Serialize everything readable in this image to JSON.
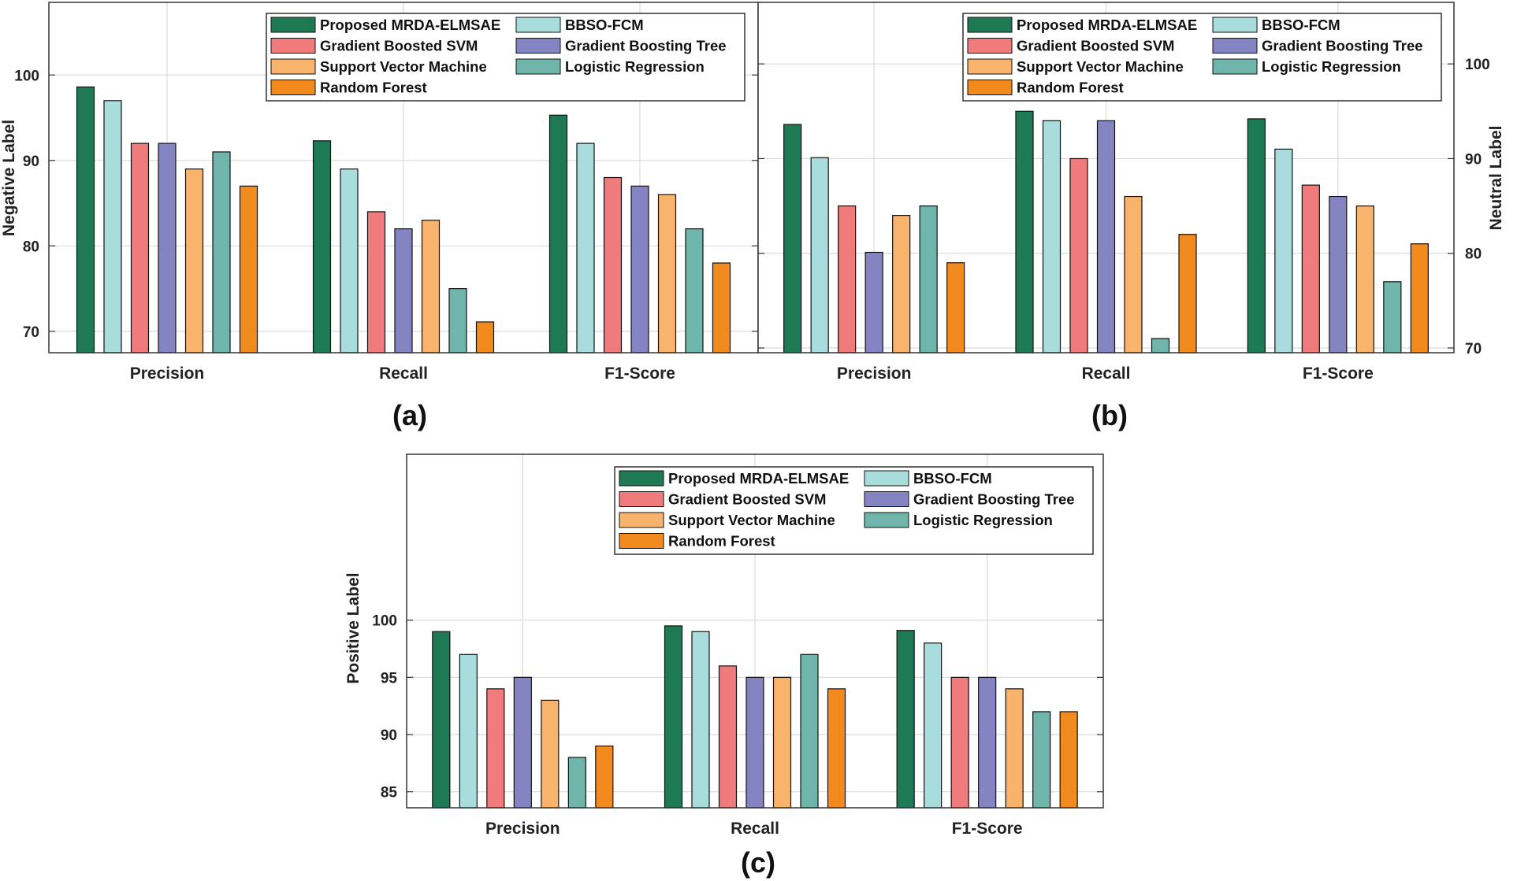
{
  "chart_data": [
    {
      "type": "bar",
      "panel": "(a)",
      "ylabel": "Negative Label",
      "categories": [
        "Precision",
        "Recall",
        "F1-Score"
      ],
      "ylim": [
        67.5,
        108.5
      ],
      "yticks": [
        70,
        80,
        90,
        100
      ],
      "ytick_labels": [
        "70",
        "80",
        "90",
        "100"
      ],
      "ylabel_side": "left",
      "grid": true,
      "series": [
        {
          "name": "Proposed MRDA-ELMSAE",
          "values": [
            98.6,
            92.3,
            95.3
          ]
        },
        {
          "name": "BBSO-FCM",
          "values": [
            97,
            89,
            92
          ]
        },
        {
          "name": "Gradient Boosted SVM",
          "values": [
            92,
            84,
            88
          ]
        },
        {
          "name": "Gradient Boosting Tree",
          "values": [
            92,
            82,
            87
          ]
        },
        {
          "name": "Support Vector Machine",
          "values": [
            89,
            83,
            86
          ]
        },
        {
          "name": "Logistic Regression",
          "values": [
            91,
            75,
            82
          ]
        },
        {
          "name": "Random Forest",
          "values": [
            87,
            71.1,
            78
          ]
        }
      ]
    },
    {
      "type": "bar",
      "panel": "(b)",
      "ylabel": "Neutral Label",
      "categories": [
        "Precision",
        "Recall",
        "F1-Score"
      ],
      "ylim": [
        69.5,
        106.5
      ],
      "yticks": [
        70,
        80,
        90,
        100
      ],
      "ytick_labels": [
        "70",
        "80",
        "90",
        "100"
      ],
      "ylabel_side": "right",
      "grid": true,
      "series": [
        {
          "name": "Proposed MRDA-ELMSAE",
          "values": [
            93.6,
            95,
            94.2
          ]
        },
        {
          "name": "BBSO-FCM",
          "values": [
            90.1,
            94,
            91
          ]
        },
        {
          "name": "Gradient Boosted SVM",
          "values": [
            85,
            90,
            87.2
          ]
        },
        {
          "name": "Gradient Boosting Tree",
          "values": [
            80.1,
            94,
            86
          ]
        },
        {
          "name": "Support Vector Machine",
          "values": [
            84,
            86,
            85
          ]
        },
        {
          "name": "Logistic Regression",
          "values": [
            85,
            71,
            77
          ]
        },
        {
          "name": "Random Forest",
          "values": [
            79,
            82,
            81
          ]
        }
      ]
    },
    {
      "type": "bar",
      "panel": "(c)",
      "ylabel": "Positive Label",
      "categories": [
        "Precision",
        "Recall",
        "F1-Score"
      ],
      "ylim": [
        83.6,
        114.5
      ],
      "yticks": [
        85,
        90,
        95,
        100
      ],
      "ytick_labels": [
        "85",
        "90",
        "95",
        "100"
      ],
      "ylabel_side": "left",
      "grid": true,
      "series": [
        {
          "name": "Proposed MRDA-ELMSAE",
          "values": [
            99,
            99.5,
            99.1
          ]
        },
        {
          "name": "BBSO-FCM",
          "values": [
            97,
            99,
            98
          ]
        },
        {
          "name": "Gradient Boosted SVM",
          "values": [
            94,
            96,
            95
          ]
        },
        {
          "name": "Gradient Boosting Tree",
          "values": [
            95,
            95,
            95
          ]
        },
        {
          "name": "Support Vector Machine",
          "values": [
            93,
            95,
            94
          ]
        },
        {
          "name": "Logistic Regression",
          "values": [
            88,
            97,
            92
          ]
        },
        {
          "name": "Random Forest",
          "values": [
            89,
            94,
            92
          ]
        }
      ]
    }
  ],
  "legend_colors": [
    "#1e7a55",
    "#a9dcdc",
    "#ef7b7d",
    "#8584c3",
    "#f8b46d",
    "#6fb5ab",
    "#f28a1e"
  ]
}
